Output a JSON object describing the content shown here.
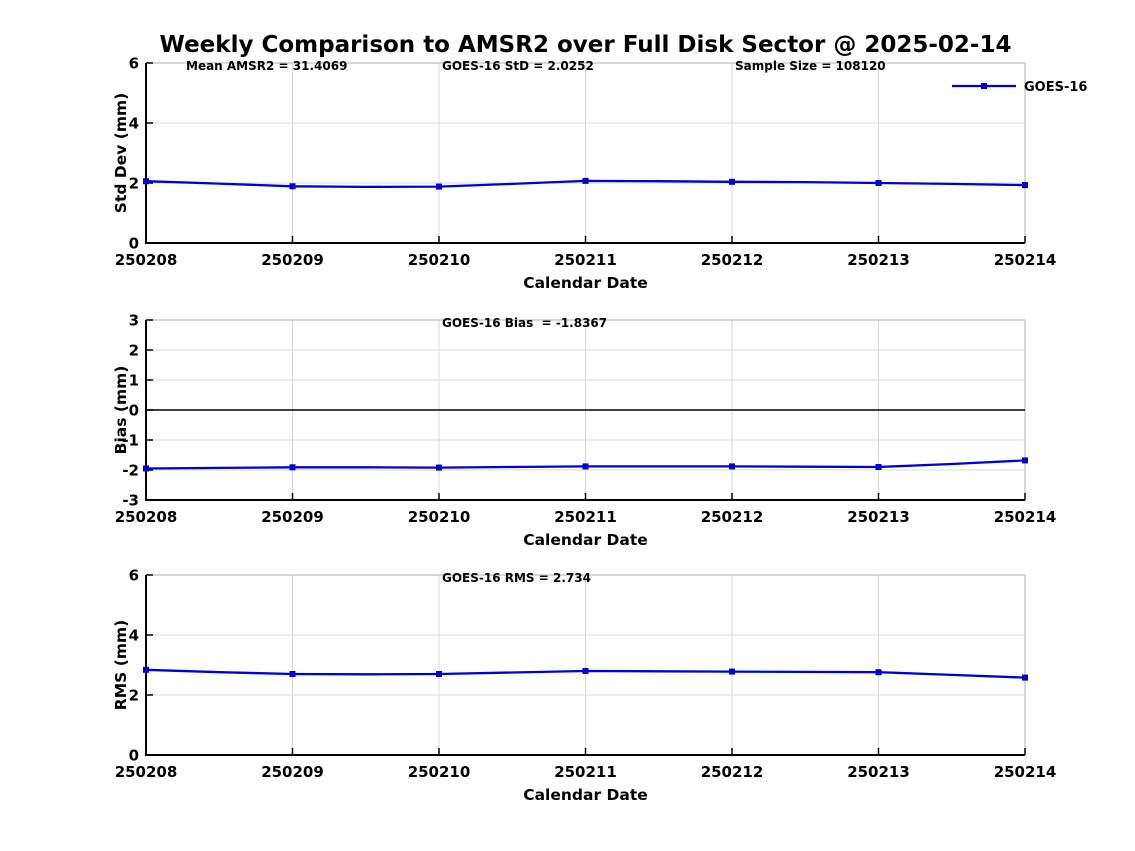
{
  "page": {
    "title": "Weekly Comparison to AMSR2 over Full Disk Sector @ 2025-02-14"
  },
  "legend": {
    "label": "GOES-16",
    "color": "#0000dd",
    "position": "top-right"
  },
  "stats": {
    "mean_amsr2": 31.4069,
    "goes16_std": 2.0252,
    "sample_size": 108120,
    "goes16_bias": -1.8367,
    "goes16_rms": 2.734
  },
  "chart_data": [
    {
      "type": "line",
      "name": "std_dev",
      "annotations": [
        "Mean AMSR2 = 31.4069",
        "GOES-16 StD = 2.0252",
        "Sample Size = 108120"
      ],
      "xlabel": "Calendar Date",
      "ylabel": "Std Dev (mm)",
      "xlim": [
        0,
        6
      ],
      "ylim": [
        0,
        6
      ],
      "yticks": [
        0,
        2,
        4,
        6
      ],
      "grid": true,
      "zero_line": false,
      "categories": [
        "250208",
        "250209",
        "250210",
        "250211",
        "250212",
        "250213",
        "250214"
      ],
      "x": [
        0,
        0.5,
        1,
        1.5,
        2,
        2.5,
        3,
        3.5,
        4,
        4.5,
        5,
        5.5,
        6
      ],
      "series": [
        {
          "name": "GOES-16",
          "color": "#0000dd",
          "values": [
            2.06,
            1.98,
            1.89,
            1.87,
            1.88,
            1.97,
            2.07,
            2.06,
            2.04,
            2.03,
            2.0,
            1.97,
            1.93
          ]
        }
      ]
    },
    {
      "type": "line",
      "name": "bias",
      "annotations": [
        "GOES-16 Bias  = -1.8367"
      ],
      "xlabel": "Calendar Date",
      "ylabel": "Bias (mm)",
      "xlim": [
        0,
        6
      ],
      "ylim": [
        -3,
        3
      ],
      "yticks": [
        -3,
        -2,
        -1,
        0,
        1,
        2,
        3
      ],
      "grid": true,
      "zero_line": true,
      "categories": [
        "250208",
        "250209",
        "250210",
        "250211",
        "250212",
        "250213",
        "250214"
      ],
      "x": [
        0,
        0.5,
        1,
        1.5,
        2,
        2.5,
        3,
        3.5,
        4,
        4.5,
        5,
        5.5,
        6
      ],
      "series": [
        {
          "name": "GOES-16",
          "color": "#0000dd",
          "values": [
            -1.95,
            -1.93,
            -1.91,
            -1.91,
            -1.92,
            -1.9,
            -1.88,
            -1.88,
            -1.88,
            -1.89,
            -1.9,
            -1.8,
            -1.68
          ]
        }
      ]
    },
    {
      "type": "line",
      "name": "rms",
      "annotations": [
        "GOES-16 RMS = 2.734"
      ],
      "xlabel": "Calendar Date",
      "ylabel": "RMS (mm)",
      "xlim": [
        0,
        6
      ],
      "ylim": [
        0,
        6
      ],
      "yticks": [
        0,
        2,
        4,
        6
      ],
      "grid": true,
      "zero_line": false,
      "categories": [
        "250208",
        "250209",
        "250210",
        "250211",
        "250212",
        "250213",
        "250214"
      ],
      "x": [
        0,
        0.5,
        1,
        1.5,
        2,
        2.5,
        3,
        3.5,
        4,
        4.5,
        5,
        5.5,
        6
      ],
      "series": [
        {
          "name": "GOES-16",
          "color": "#0000dd",
          "values": [
            2.84,
            2.76,
            2.7,
            2.69,
            2.7,
            2.75,
            2.8,
            2.79,
            2.78,
            2.77,
            2.76,
            2.67,
            2.58
          ]
        }
      ]
    }
  ]
}
